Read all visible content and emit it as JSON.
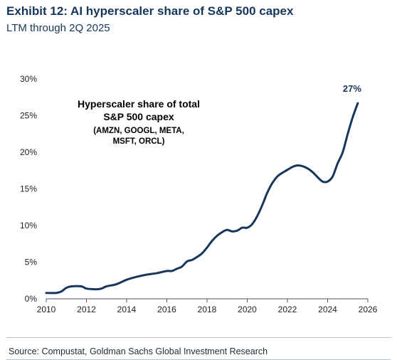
{
  "header": {
    "title": "Exhibit 12: AI hyperscaler share of S&P 500 capex",
    "subtitle": "LTM through 2Q 2025"
  },
  "source": "Source: Compustat, Goldman Sachs Global Investment Research",
  "colors": {
    "line": "#16365c",
    "title": "#16365c",
    "annotation": "#16365c"
  },
  "chart_data": {
    "type": "line",
    "title": "",
    "xlabel": "",
    "ylabel": "",
    "xlim": [
      2010,
      2026
    ],
    "ylim": [
      0,
      30
    ],
    "x_ticks": [
      "2010",
      "2012",
      "2014",
      "2016",
      "2018",
      "2020",
      "2022",
      "2024",
      "2026"
    ],
    "y_ticks": [
      "0%",
      "5%",
      "10%",
      "15%",
      "20%",
      "25%",
      "30%"
    ],
    "grid": false,
    "annotation": {
      "lines": [
        "Hyperscaler share of total",
        "S&P 500 capex"
      ],
      "sublines": [
        "(AMZN, GOOGL, META,",
        "MSFT, ORCL)"
      ]
    },
    "end_label": "27%",
    "series": [
      {
        "values": [
          [
            2010.0,
            0.8
          ],
          [
            2010.5,
            0.8
          ],
          [
            2010.75,
            1.0
          ],
          [
            2011.0,
            1.5
          ],
          [
            2011.25,
            1.7
          ],
          [
            2011.75,
            1.7
          ],
          [
            2012.0,
            1.4
          ],
          [
            2012.5,
            1.3
          ],
          [
            2012.75,
            1.4
          ],
          [
            2013.0,
            1.7
          ],
          [
            2013.5,
            2.0
          ],
          [
            2014.0,
            2.6
          ],
          [
            2014.5,
            3.0
          ],
          [
            2015.0,
            3.3
          ],
          [
            2015.5,
            3.5
          ],
          [
            2016.0,
            3.8
          ],
          [
            2016.25,
            3.8
          ],
          [
            2016.5,
            4.1
          ],
          [
            2016.75,
            4.4
          ],
          [
            2017.0,
            5.1
          ],
          [
            2017.25,
            5.3
          ],
          [
            2017.5,
            5.7
          ],
          [
            2017.75,
            6.2
          ],
          [
            2018.0,
            7.0
          ],
          [
            2018.25,
            7.9
          ],
          [
            2018.5,
            8.6
          ],
          [
            2018.75,
            9.1
          ],
          [
            2019.0,
            9.4
          ],
          [
            2019.25,
            9.2
          ],
          [
            2019.5,
            9.3
          ],
          [
            2019.75,
            9.7
          ],
          [
            2020.0,
            9.7
          ],
          [
            2020.25,
            10.2
          ],
          [
            2020.5,
            11.3
          ],
          [
            2020.75,
            12.8
          ],
          [
            2021.0,
            14.5
          ],
          [
            2021.25,
            15.8
          ],
          [
            2021.5,
            16.7
          ],
          [
            2021.75,
            17.2
          ],
          [
            2022.0,
            17.6
          ],
          [
            2022.25,
            18.0
          ],
          [
            2022.5,
            18.2
          ],
          [
            2022.75,
            18.1
          ],
          [
            2023.0,
            17.8
          ],
          [
            2023.25,
            17.3
          ],
          [
            2023.5,
            16.6
          ],
          [
            2023.75,
            16.0
          ],
          [
            2024.0,
            16.0
          ],
          [
            2024.25,
            16.7
          ],
          [
            2024.5,
            18.5
          ],
          [
            2024.75,
            20.0
          ],
          [
            2025.0,
            22.5
          ],
          [
            2025.25,
            24.8
          ],
          [
            2025.5,
            26.7
          ]
        ]
      }
    ]
  }
}
